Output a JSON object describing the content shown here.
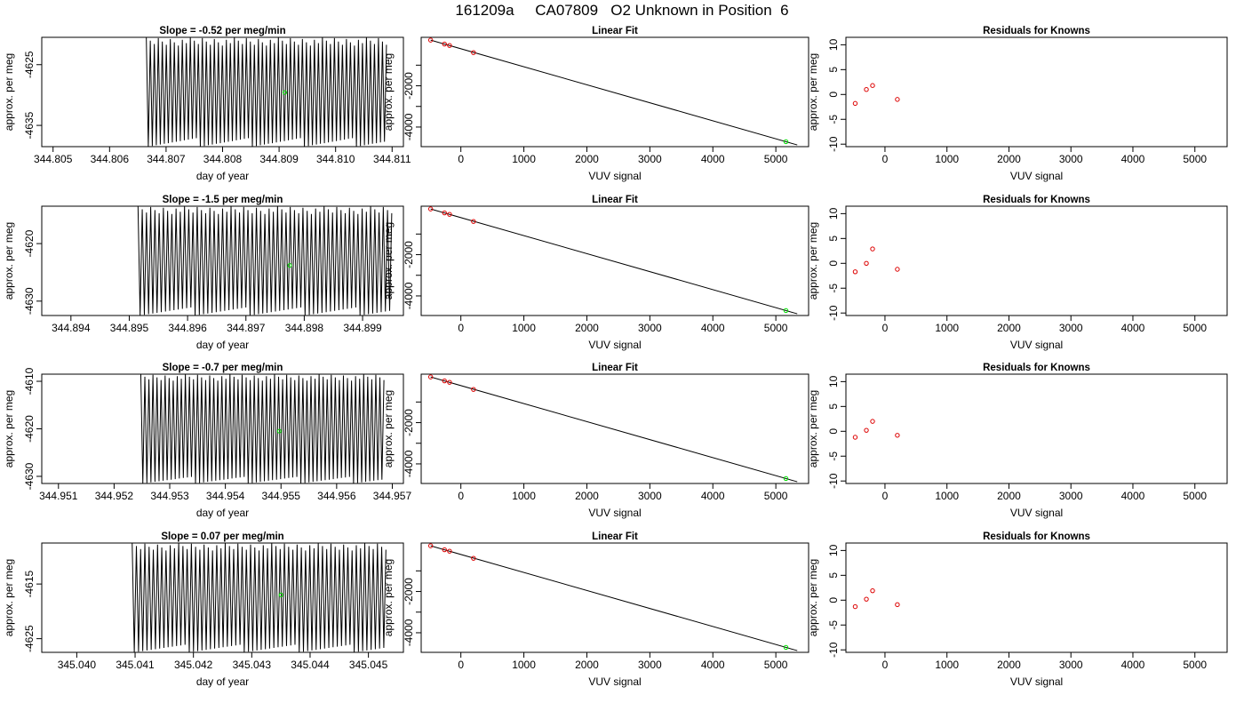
{
  "page": {
    "title": "161209a     CA07809   O2 Unknown in Position  6"
  },
  "colors": {
    "trace": "#000000",
    "unknown_point": "#00dd00",
    "known_point": "#dd0000",
    "axes": "#000000"
  },
  "chart_data": [
    {
      "type": "line",
      "title": "Slope =  -0.52  per meg/min",
      "xlabel": "day of year",
      "ylabel": "approx. per meg",
      "xlim": [
        344.8048,
        344.8112
      ],
      "ylim": [
        -4638.5,
        -4620.5
      ],
      "xticks": [
        "344.805",
        "344.806",
        "344.807",
        "344.808",
        "344.809",
        "344.810",
        "344.811"
      ],
      "yticks": [
        "-4625",
        "-4635"
      ],
      "ytick_values": [
        -4625,
        -4635
      ],
      "trace": {
        "x_start": 344.80665,
        "x_end": 344.8109,
        "cycles": 60,
        "high": -4620.5,
        "low": -4638.5,
        "jitter": 1.5
      },
      "unknown_point": {
        "x": 344.8091,
        "y": -4629.6
      }
    },
    {
      "type": "scatter",
      "title": "Linear Fit",
      "xlabel": "VUV signal",
      "ylabel": "approx. per meg",
      "xlim": [
        -630,
        5520
      ],
      "ylim": [
        -4950,
        350
      ],
      "xticks": [
        "0",
        "1000",
        "2000",
        "3000",
        "4000",
        "5000"
      ],
      "xtick_values": [
        0,
        1000,
        2000,
        3000,
        4000,
        5000
      ],
      "yticks": [
        "-2000",
        "-4000"
      ],
      "ytick_values": [
        -2000,
        -4000
      ],
      "minor_yticks": [
        -1000,
        -3000
      ],
      "fit_line": {
        "x": [
          -480,
          5340
        ],
        "y": [
          215,
          -4867
        ]
      },
      "known_points": {
        "x": [
          -480,
          -260,
          -180,
          200
        ],
        "y": [
          215,
          25,
          -45,
          -390
        ]
      },
      "unknown_point": {
        "x": 5160,
        "y": -4710
      }
    },
    {
      "type": "scatter",
      "title": "Residuals for Knowns",
      "xlabel": "VUV signal",
      "ylabel": "approx. per meg",
      "xlim": [
        -630,
        5520
      ],
      "ylim": [
        -10.5,
        11.5
      ],
      "xticks": [
        "0",
        "1000",
        "2000",
        "3000",
        "4000",
        "5000"
      ],
      "xtick_values": [
        0,
        1000,
        2000,
        3000,
        4000,
        5000
      ],
      "yticks": [
        "-10",
        "-5",
        "0",
        "5",
        "10"
      ],
      "ytick_values": [
        -10,
        -5,
        0,
        5,
        10
      ],
      "known_points": {
        "x": [
          -480,
          -300,
          -200,
          200
        ],
        "y": [
          -1.8,
          1.0,
          1.8,
          -1.0
        ]
      }
    },
    {
      "type": "line",
      "title": "Slope =  -1.5  per meg/min",
      "xlabel": "day of year",
      "ylabel": "approx. per meg",
      "xlim": [
        344.8935,
        344.8997
      ],
      "ylim": [
        -4632.5,
        -4613.5
      ],
      "xticks": [
        "344.894",
        "344.895",
        "344.896",
        "344.897",
        "344.898",
        "344.899"
      ],
      "yticks": [
        "-4620",
        "-4630"
      ],
      "ytick_values": [
        -4620,
        -4630
      ],
      "trace": {
        "x_start": 344.89515,
        "x_end": 344.8995,
        "cycles": 60,
        "high": -4613.5,
        "low": -4632.5,
        "jitter": 1.5
      },
      "unknown_point": {
        "x": 344.89775,
        "y": -4623.8
      }
    },
    {
      "type": "scatter",
      "title": "Linear Fit",
      "xlabel": "VUV signal",
      "ylabel": "approx. per meg",
      "xlim": [
        -630,
        5520
      ],
      "ylim": [
        -4950,
        350
      ],
      "xticks": [
        "0",
        "1000",
        "2000",
        "3000",
        "4000",
        "5000"
      ],
      "xtick_values": [
        0,
        1000,
        2000,
        3000,
        4000,
        5000
      ],
      "yticks": [
        "-2000",
        "-4000"
      ],
      "ytick_values": [
        -2000,
        -4000
      ],
      "minor_yticks": [
        -1000,
        -3000
      ],
      "fit_line": {
        "x": [
          -480,
          5340
        ],
        "y": [
          215,
          -4867
        ]
      },
      "known_points": {
        "x": [
          -480,
          -260,
          -180,
          200
        ],
        "y": [
          215,
          25,
          -45,
          -390
        ]
      },
      "unknown_point": {
        "x": 5160,
        "y": -4710
      }
    },
    {
      "type": "scatter",
      "title": "Residuals for Knowns",
      "xlabel": "VUV signal",
      "ylabel": "approx. per meg",
      "xlim": [
        -630,
        5520
      ],
      "ylim": [
        -10.5,
        11.5
      ],
      "xticks": [
        "0",
        "1000",
        "2000",
        "3000",
        "4000",
        "5000"
      ],
      "xtick_values": [
        0,
        1000,
        2000,
        3000,
        4000,
        5000
      ],
      "yticks": [
        "-10",
        "-5",
        "0",
        "5",
        "10"
      ],
      "ytick_values": [
        -10,
        -5,
        0,
        5,
        10
      ],
      "known_points": {
        "x": [
          -480,
          -300,
          -200,
          200
        ],
        "y": [
          -1.7,
          0.0,
          2.9,
          -1.2
        ]
      }
    },
    {
      "type": "line",
      "title": "Slope =  -0.7  per meg/min",
      "xlabel": "day of year",
      "ylabel": "approx. per meg",
      "xlim": [
        344.9507,
        344.9572
      ],
      "ylim": [
        -4631.5,
        -4608.5
      ],
      "xticks": [
        "344.951",
        "344.952",
        "344.953",
        "344.954",
        "344.955",
        "344.956",
        "344.957"
      ],
      "yticks": [
        "-4610",
        "-4620",
        "-4630"
      ],
      "ytick_values": [
        -4610,
        -4620,
        -4630
      ],
      "trace": {
        "x_start": 344.95248,
        "x_end": 344.95685,
        "cycles": 60,
        "high": -4608.5,
        "low": -4631.5,
        "jitter": 1.5
      },
      "unknown_point": {
        "x": 344.95497,
        "y": -4620.5
      }
    },
    {
      "type": "scatter",
      "title": "Linear Fit",
      "xlabel": "VUV signal",
      "ylabel": "approx. per meg",
      "xlim": [
        -630,
        5520
      ],
      "ylim": [
        -4950,
        350
      ],
      "xticks": [
        "0",
        "1000",
        "2000",
        "3000",
        "4000",
        "5000"
      ],
      "xtick_values": [
        0,
        1000,
        2000,
        3000,
        4000,
        5000
      ],
      "yticks": [
        "-2000",
        "-4000"
      ],
      "ytick_values": [
        -2000,
        -4000
      ],
      "minor_yticks": [
        -1000,
        -3000
      ],
      "fit_line": {
        "x": [
          -480,
          5340
        ],
        "y": [
          215,
          -4867
        ]
      },
      "known_points": {
        "x": [
          -480,
          -260,
          -180,
          200
        ],
        "y": [
          215,
          25,
          -45,
          -390
        ]
      },
      "unknown_point": {
        "x": 5160,
        "y": -4710
      }
    },
    {
      "type": "scatter",
      "title": "Residuals for Knowns",
      "xlabel": "VUV signal",
      "ylabel": "approx. per meg",
      "xlim": [
        -630,
        5520
      ],
      "ylim": [
        -10.5,
        11.5
      ],
      "xticks": [
        "0",
        "1000",
        "2000",
        "3000",
        "4000",
        "5000"
      ],
      "xtick_values": [
        0,
        1000,
        2000,
        3000,
        4000,
        5000
      ],
      "yticks": [
        "-10",
        "-5",
        "0",
        "5",
        "10"
      ],
      "ytick_values": [
        -10,
        -5,
        0,
        5,
        10
      ],
      "known_points": {
        "x": [
          -480,
          -300,
          -200,
          200
        ],
        "y": [
          -1.2,
          0.2,
          2.0,
          -0.8
        ]
      }
    },
    {
      "type": "line",
      "title": "Slope =  0.07  per meg/min",
      "xlabel": "day of year",
      "ylabel": "approx. per meg",
      "xlim": [
        345.0394,
        345.0456
      ],
      "ylim": [
        -4627.5,
        -4607.5
      ],
      "xticks": [
        "345.040",
        "345.041",
        "345.042",
        "345.043",
        "345.044",
        "345.045"
      ],
      "yticks": [
        "-4615",
        "-4625"
      ],
      "ytick_values": [
        -4615,
        -4625
      ],
      "trace": {
        "x_start": 345.04095,
        "x_end": 345.0453,
        "cycles": 60,
        "high": -4607.5,
        "low": -4627.5,
        "jitter": 1.5
      },
      "unknown_point": {
        "x": 345.0435,
        "y": -4617.0
      }
    },
    {
      "type": "scatter",
      "title": "Linear Fit",
      "xlabel": "VUV signal",
      "ylabel": "approx. per meg",
      "xlim": [
        -630,
        5520
      ],
      "ylim": [
        -4950,
        350
      ],
      "xticks": [
        "0",
        "1000",
        "2000",
        "3000",
        "4000",
        "5000"
      ],
      "xtick_values": [
        0,
        1000,
        2000,
        3000,
        4000,
        5000
      ],
      "yticks": [
        "-2000",
        "-4000"
      ],
      "ytick_values": [
        -2000,
        -4000
      ],
      "minor_yticks": [
        -1000,
        -3000
      ],
      "fit_line": {
        "x": [
          -480,
          5340
        ],
        "y": [
          215,
          -4867
        ]
      },
      "known_points": {
        "x": [
          -480,
          -260,
          -180,
          200
        ],
        "y": [
          215,
          25,
          -45,
          -390
        ]
      },
      "unknown_point": {
        "x": 5160,
        "y": -4710
      }
    },
    {
      "type": "scatter",
      "title": "Residuals for Knowns",
      "xlabel": "VUV signal",
      "ylabel": "approx. per meg",
      "xlim": [
        -630,
        5520
      ],
      "ylim": [
        -10.5,
        11.5
      ],
      "xticks": [
        "0",
        "1000",
        "2000",
        "3000",
        "4000",
        "5000"
      ],
      "xtick_values": [
        0,
        1000,
        2000,
        3000,
        4000,
        5000
      ],
      "yticks": [
        "-10",
        "-5",
        "0",
        "5",
        "10"
      ],
      "ytick_values": [
        -10,
        -5,
        0,
        5,
        10
      ],
      "known_points": {
        "x": [
          -480,
          -300,
          -200,
          200
        ],
        "y": [
          -1.3,
          0.2,
          1.9,
          -0.9
        ]
      }
    }
  ]
}
